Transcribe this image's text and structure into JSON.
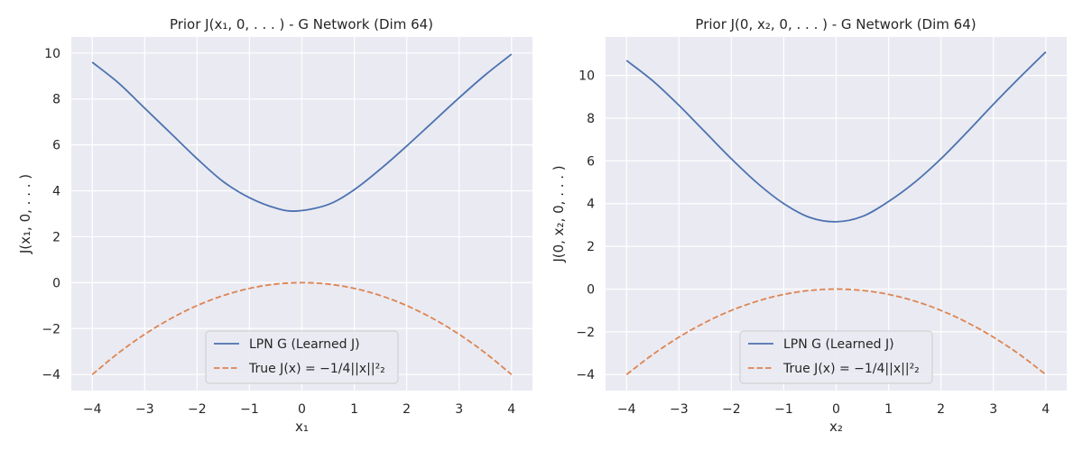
{
  "chart_data": [
    {
      "type": "line",
      "title": "Prior J(x₁, 0, . . . ) - G Network (Dim 64)",
      "xlabel": "x₁",
      "ylabel": "J(x₁, 0, . . . )",
      "xlim": [
        -4.4,
        4.4
      ],
      "ylim": [
        -4.7,
        10.7
      ],
      "xticks": [
        -4,
        -3,
        -2,
        -1,
        0,
        1,
        2,
        3,
        4
      ],
      "xtick_labels": [
        "−4",
        "−3",
        "−2",
        "−1",
        "0",
        "1",
        "2",
        "3",
        "4"
      ],
      "yticks": [
        -4,
        -2,
        0,
        2,
        4,
        6,
        8,
        10
      ],
      "ytick_labels": [
        "−4",
        "−2",
        "0",
        "2",
        "4",
        "6",
        "8",
        "10"
      ],
      "grid": true,
      "legend_position": "lower-center",
      "series": [
        {
          "name": "LPN G (Learned J)",
          "color": "#4c72b0",
          "dash": "solid",
          "x": [
            -4,
            -3.5,
            -3,
            -2.5,
            -2,
            -1.5,
            -1,
            -0.5,
            -0.1,
            0.5,
            1,
            1.5,
            2,
            2.5,
            3,
            3.5,
            4
          ],
          "y": [
            9.6,
            8.7,
            7.6,
            6.5,
            5.4,
            4.4,
            3.7,
            3.25,
            3.12,
            3.4,
            4.05,
            4.95,
            5.95,
            7.0,
            8.05,
            9.05,
            9.95
          ]
        },
        {
          "name": "True J(x) = −1/4||x||²₂",
          "color": "#dd8452",
          "dash": "dashed",
          "x": [
            -4,
            -3.5,
            -3,
            -2.5,
            -2,
            -1.5,
            -1,
            -0.5,
            0,
            0.5,
            1,
            1.5,
            2,
            2.5,
            3,
            3.5,
            4
          ],
          "y": [
            -4,
            -3.0625,
            -2.25,
            -1.5625,
            -1,
            -0.5625,
            -0.25,
            -0.0625,
            0,
            -0.0625,
            -0.25,
            -0.5625,
            -1,
            -1.5625,
            -2.25,
            -3.0625,
            -4
          ]
        }
      ]
    },
    {
      "type": "line",
      "title": "Prior J(0, x₂, 0, . . . ) - G Network (Dim 64)",
      "xlabel": "x₂",
      "ylabel": "J(0, x₂, 0, . . . )",
      "xlim": [
        -4.4,
        4.4
      ],
      "ylim": [
        -4.75,
        11.8
      ],
      "xticks": [
        -4,
        -3,
        -2,
        -1,
        0,
        1,
        2,
        3,
        4
      ],
      "xtick_labels": [
        "−4",
        "−3",
        "−2",
        "−1",
        "0",
        "1",
        "2",
        "3",
        "4"
      ],
      "yticks": [
        -4,
        -2,
        0,
        2,
        4,
        6,
        8,
        10
      ],
      "ytick_labels": [
        "−4",
        "−2",
        "0",
        "2",
        "4",
        "6",
        "8",
        "10"
      ],
      "grid": true,
      "legend_position": "lower-center",
      "series": [
        {
          "name": "LPN G (Learned J)",
          "color": "#4c72b0",
          "dash": "solid",
          "x": [
            -4,
            -3.5,
            -3,
            -2.5,
            -2,
            -1.5,
            -1,
            -0.5,
            0,
            0.5,
            1,
            1.5,
            2,
            2.5,
            3,
            3.5,
            4
          ],
          "y": [
            10.7,
            9.75,
            8.6,
            7.35,
            6.1,
            4.95,
            4.0,
            3.35,
            3.15,
            3.4,
            4.1,
            5.0,
            6.1,
            7.35,
            8.65,
            9.9,
            11.1
          ]
        },
        {
          "name": "True J(x) = −1/4||x||²₂",
          "color": "#dd8452",
          "dash": "dashed",
          "x": [
            -4,
            -3.5,
            -3,
            -2.5,
            -2,
            -1.5,
            -1,
            -0.5,
            0,
            0.5,
            1,
            1.5,
            2,
            2.5,
            3,
            3.5,
            4
          ],
          "y": [
            -4,
            -3.0625,
            -2.25,
            -1.5625,
            -1,
            -0.5625,
            -0.25,
            -0.0625,
            0,
            -0.0625,
            -0.25,
            -0.5625,
            -1,
            -1.5625,
            -2.25,
            -3.0625,
            -4
          ]
        }
      ]
    }
  ]
}
